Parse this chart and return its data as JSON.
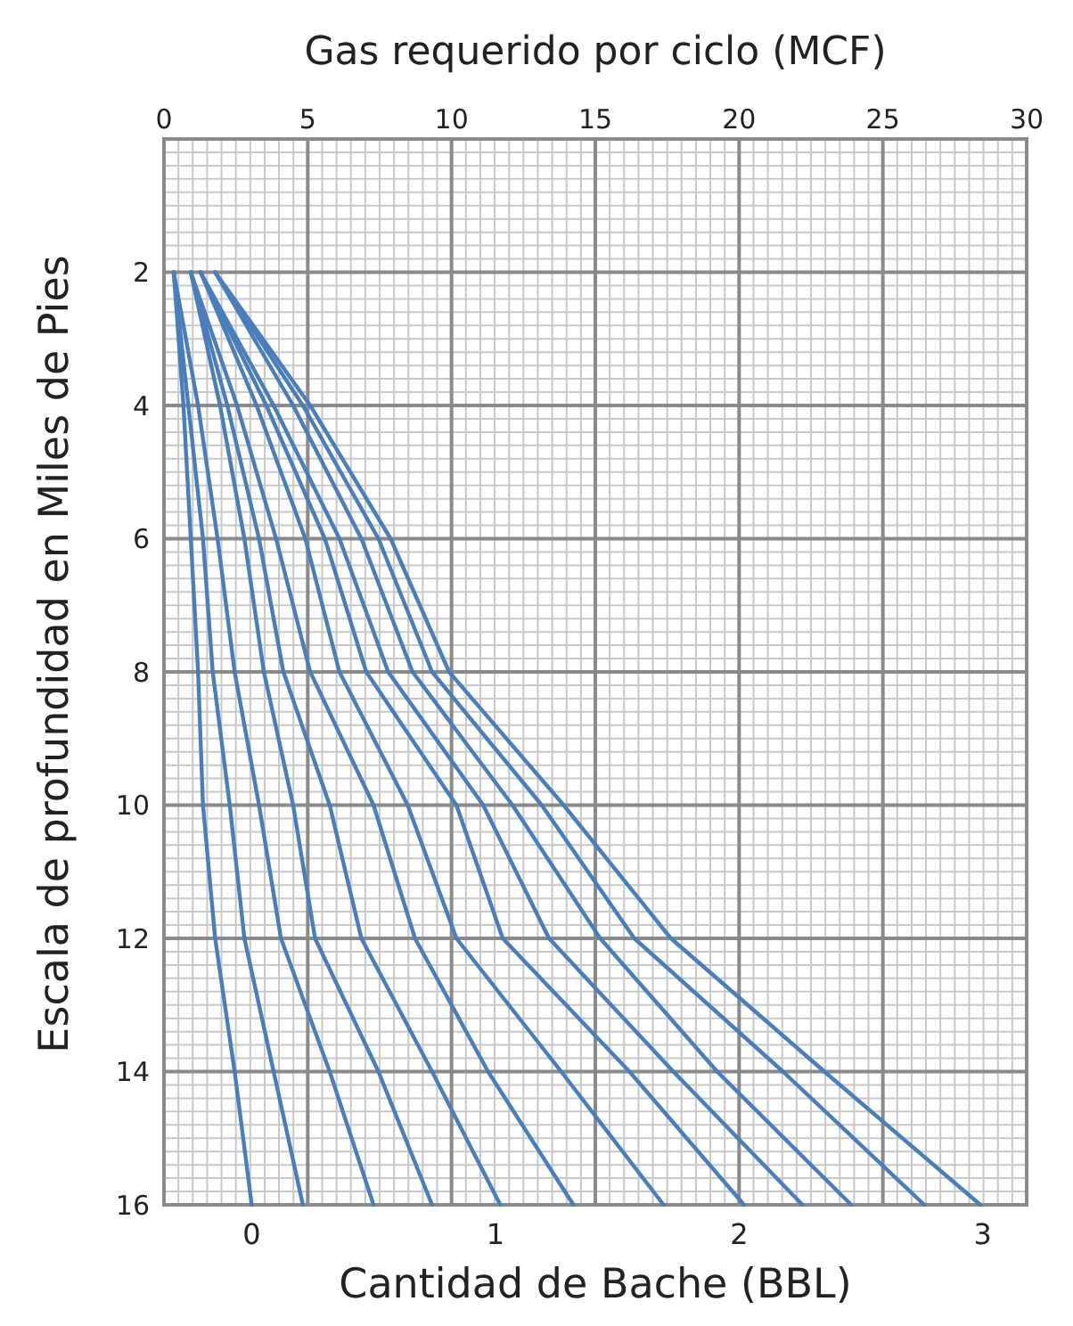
{
  "chart_data": {
    "type": "line",
    "xlabel": "Cantidad de Bache (BBL)",
    "x2label": "Gas requerido por ciclo (MCF)",
    "ylabel": "Escala de profundidad en Miles de Pies",
    "xlim": [
      -0.36,
      3.18
    ],
    "xticks": [
      0,
      1,
      2,
      3
    ],
    "x2lim": [
      0,
      30
    ],
    "x2ticks": [
      0,
      5,
      10,
      15,
      20,
      25,
      30
    ],
    "ylim": [
      16,
      0
    ],
    "yticks": [
      2,
      4,
      6,
      8,
      10,
      12,
      14,
      16
    ],
    "grid": true,
    "marker": "none",
    "line_style": "solid",
    "series": [
      {
        "color": "#4a7ebb",
        "x": [
          -0.32,
          -0.28,
          -0.25,
          -0.22,
          -0.2,
          -0.15,
          -0.07,
          0.0
        ],
        "values": [
          2,
          4,
          6,
          8,
          10,
          12,
          14,
          16
        ]
      },
      {
        "color": "#4a7ebb",
        "x": [
          -0.32,
          -0.26,
          -0.2,
          -0.16,
          -0.09,
          -0.03,
          0.09,
          0.21
        ],
        "values": [
          2,
          4,
          6,
          8,
          10,
          12,
          14,
          16
        ]
      },
      {
        "color": "#4a7ebb",
        "x": [
          -0.32,
          -0.22,
          -0.14,
          -0.07,
          0.03,
          0.12,
          0.32,
          0.5
        ],
        "values": [
          2,
          4,
          6,
          8,
          10,
          12,
          14,
          16
        ]
      },
      {
        "color": "#4a7ebb",
        "x": [
          -0.25,
          -0.13,
          -0.03,
          0.05,
          0.17,
          0.26,
          0.52,
          0.74
        ],
        "values": [
          2,
          4,
          6,
          8,
          10,
          12,
          14,
          16
        ]
      },
      {
        "color": "#4a7ebb",
        "x": [
          -0.25,
          -0.1,
          0.03,
          0.13,
          0.32,
          0.45,
          0.74,
          1.02
        ],
        "values": [
          2,
          4,
          6,
          8,
          10,
          12,
          14,
          16
        ]
      },
      {
        "color": "#4a7ebb",
        "x": [
          -0.25,
          -0.06,
          0.1,
          0.24,
          0.5,
          0.67,
          0.97,
          1.32
        ],
        "values": [
          2,
          4,
          6,
          8,
          10,
          12,
          14,
          16
        ]
      },
      {
        "color": "#4a7ebb",
        "x": [
          -0.21,
          0.02,
          0.22,
          0.36,
          0.64,
          0.84,
          1.27,
          1.69
        ],
        "values": [
          2,
          4,
          6,
          8,
          10,
          12,
          14,
          16
        ]
      },
      {
        "color": "#4a7ebb",
        "x": [
          -0.21,
          0.06,
          0.3,
          0.47,
          0.84,
          1.03,
          1.55,
          2.02
        ],
        "values": [
          2,
          4,
          6,
          8,
          10,
          12,
          14,
          16
        ]
      },
      {
        "color": "#4a7ebb",
        "x": [
          -0.21,
          0.09,
          0.36,
          0.56,
          0.95,
          1.22,
          1.73,
          2.26
        ],
        "values": [
          2,
          4,
          6,
          8,
          10,
          12,
          14,
          16
        ]
      },
      {
        "color": "#4a7ebb",
        "x": [
          -0.15,
          0.17,
          0.45,
          0.66,
          1.07,
          1.43,
          1.91,
          2.46
        ],
        "values": [
          2,
          4,
          6,
          8,
          10,
          12,
          14,
          16
        ]
      },
      {
        "color": "#4a7ebb",
        "x": [
          -0.15,
          0.21,
          0.52,
          0.74,
          1.19,
          1.57,
          2.18,
          2.76
        ],
        "values": [
          2,
          4,
          6,
          8,
          10,
          12,
          14,
          16
        ]
      },
      {
        "color": "#4a7ebb",
        "x": [
          -0.15,
          0.24,
          0.57,
          0.81,
          1.28,
          1.72,
          2.35,
          2.99
        ],
        "values": [
          2,
          4,
          6,
          8,
          10,
          12,
          14,
          16
        ]
      }
    ]
  }
}
